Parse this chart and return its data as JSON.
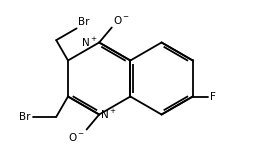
{
  "bg_color": "#ffffff",
  "line_color": "#000000",
  "lw": 1.3,
  "fs": 7.5,
  "figsize": [
    2.61,
    1.57
  ],
  "dpi": 100,
  "xlim": [
    0,
    10
  ],
  "ylim": [
    0,
    6
  ]
}
